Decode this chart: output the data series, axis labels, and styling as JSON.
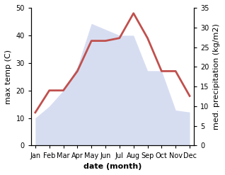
{
  "months": [
    "Jan",
    "Feb",
    "Mar",
    "Apr",
    "May",
    "Jun",
    "Jul",
    "Aug",
    "Sep",
    "Oct",
    "Nov",
    "Dec"
  ],
  "temperature": [
    12,
    20,
    20,
    27,
    38,
    38,
    39,
    48,
    39,
    27,
    27,
    18
  ],
  "precipitation": [
    7,
    10,
    14,
    20,
    31,
    29.5,
    28,
    28,
    19,
    19,
    9,
    8.5
  ],
  "temp_ylim": [
    0,
    50
  ],
  "precip_ylim": [
    0,
    35
  ],
  "line_color": "#c0504d",
  "fill_color": "#c6cfec",
  "fill_alpha": 0.7,
  "xlabel": "date (month)",
  "ylabel_left": "max temp (C)",
  "ylabel_right": "med. precipitation (kg/m2)",
  "line_width": 2.0,
  "title_fontsize": 9,
  "axis_fontsize": 8,
  "tick_fontsize": 7
}
